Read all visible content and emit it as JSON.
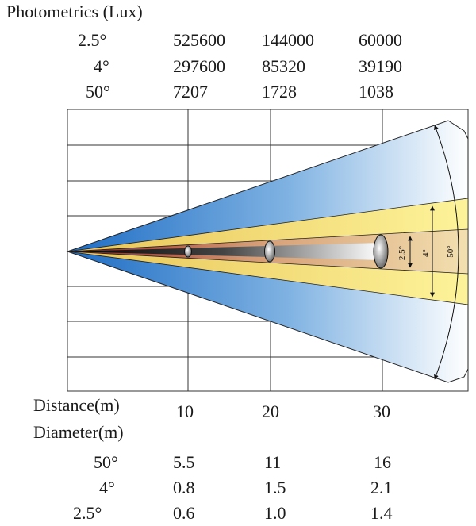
{
  "photometrics": {
    "title": "Photometrics (Lux)",
    "rows": [
      {
        "angle": "2.5°",
        "values": [
          "525600",
          "144000",
          "60000"
        ]
      },
      {
        "angle": "4°",
        "values": [
          "297600",
          "85320",
          "39190"
        ]
      },
      {
        "angle": "50°",
        "values": [
          "7207",
          "1728",
          "1038"
        ]
      }
    ]
  },
  "diagram": {
    "angle_labels": {
      "a25": "2.5°",
      "a4": "4°",
      "a50": "50°"
    },
    "colors": {
      "wide": "#2e7fd0",
      "mid": "#f2d04a",
      "narrow": "#c0504d",
      "grid": "#333333"
    }
  },
  "distance": {
    "label": "Distance(m)",
    "values": [
      "10",
      "20",
      "30"
    ]
  },
  "diameter": {
    "label": "Diameter(m)",
    "rows": [
      {
        "angle": "50°",
        "values": [
          "5.5",
          "11",
          "16"
        ]
      },
      {
        "angle": "4°",
        "values": [
          "0.8",
          "1.5",
          "2.1"
        ]
      },
      {
        "angle": "2.5°",
        "values": [
          "0.6",
          "1.0",
          "1.4"
        ]
      }
    ]
  }
}
